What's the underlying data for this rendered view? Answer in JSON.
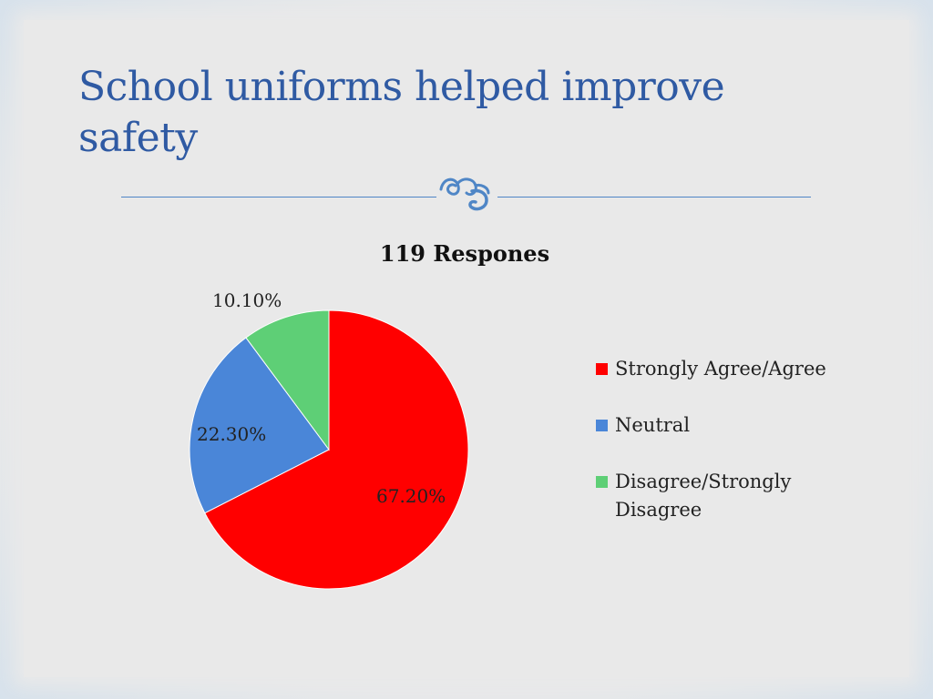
{
  "slide": {
    "title": "School uniforms helped improve safety"
  },
  "colors": {
    "title": "#2f5aa3",
    "divider": "#4f86c6",
    "ornament": "#4f86c6"
  },
  "chart_data": {
    "type": "pie",
    "title": "119 Respones",
    "labels": [
      "Strongly Agree/Agree",
      "Neutral",
      "Disagree/Strongly Disagree"
    ],
    "values": [
      67.2,
      22.3,
      10.1
    ],
    "value_labels": [
      "67.20%",
      "22.30%",
      "10.10%"
    ],
    "colors": [
      "#ff0000",
      "#4a86d8",
      "#5ecf76"
    ],
    "legend_position": "right"
  }
}
